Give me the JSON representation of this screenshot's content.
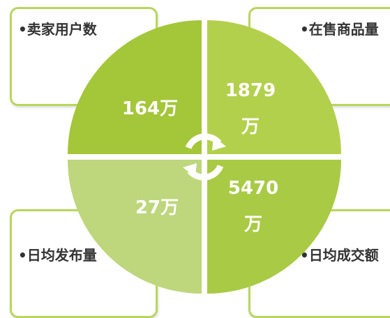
{
  "quadrants": [
    {
      "label": "卖家用户数",
      "value": "164万"
    },
    {
      "label": "在售商品量",
      "value": "1879万"
    },
    {
      "label": "日均发布量",
      "value": "27万"
    },
    {
      "label": "日均成交额",
      "value": "5470万"
    }
  ]
}
